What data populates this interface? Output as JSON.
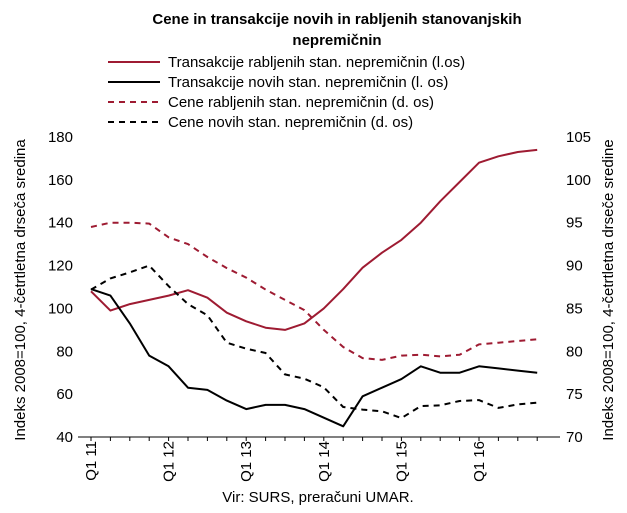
{
  "chart_data": {
    "type": "line",
    "title_line1": "Cene in transakcije novih in rabljenih stanovanjskih",
    "title_line2": "nepremičnin",
    "ylabel_left": "Indeks 2008=100, 4-četrtletna drseča sredina",
    "ylabel_right": "Indeks 2008=100, 4-četrtletna drseče sredine",
    "source": "Vir: SURS, preračuni UMAR.",
    "ylim_left": [
      40,
      180
    ],
    "yticks_left": [
      "40",
      "60",
      "80",
      "100",
      "120",
      "140",
      "160",
      "180"
    ],
    "ylim_right": [
      70,
      105
    ],
    "yticks_right": [
      "70",
      "75",
      "80",
      "85",
      "90",
      "95",
      "100",
      "105"
    ],
    "x_periods": [
      "Q1 11",
      "Q2 11",
      "Q3 11",
      "Q4 11",
      "Q1 12",
      "Q2 12",
      "Q3 12",
      "Q4 12",
      "Q1 13",
      "Q2 13",
      "Q3 13",
      "Q4 13",
      "Q1 14",
      "Q2 14",
      "Q3 14",
      "Q4 14",
      "Q1 15",
      "Q2 15",
      "Q3 15",
      "Q4 15",
      "Q1 16",
      "Q2 16",
      "Q3 16",
      "Q4 16"
    ],
    "x_tick_labels": [
      "Q1 11",
      "Q1 12",
      "Q1 13",
      "Q1 14",
      "Q1 15",
      "Q1 16"
    ],
    "legend": "top",
    "series": [
      {
        "name": "Transakcije rabljenih stan. nepremičnin (l.os)",
        "axis": "left",
        "style": "solid",
        "color": "#9e1b32",
        "values": [
          108,
          99,
          102,
          104,
          106,
          108.5,
          105,
          98,
          94,
          91,
          90,
          93,
          100,
          109,
          119,
          126,
          132,
          140,
          150,
          159,
          168,
          171,
          173,
          174
        ]
      },
      {
        "name": "Transakcije novih stan. nepremičnin (l. os)",
        "axis": "left",
        "style": "solid",
        "color": "#000000",
        "values": [
          109,
          106,
          93,
          78,
          73,
          63,
          62,
          57,
          53,
          55,
          55,
          53,
          49,
          45,
          59,
          63,
          67,
          73,
          70,
          70,
          73,
          72,
          71,
          70
        ]
      },
      {
        "name": "Cene rabljenih stan. nepremičnin (d. os)",
        "axis": "right",
        "style": "dashed",
        "color": "#9e1b32",
        "values": [
          94.5,
          95,
          95,
          94.9,
          93.3,
          92.5,
          91,
          89.7,
          88.6,
          87.2,
          86,
          84.8,
          82.5,
          80.5,
          79.2,
          79,
          79.5,
          79.6,
          79.4,
          79.6,
          80.8,
          81,
          81.2,
          81.4
        ]
      },
      {
        "name": "Cene novih stan. nepremičnin (d. os)",
        "axis": "right",
        "style": "dashed",
        "color": "#000000",
        "values": [
          87.2,
          88.5,
          89.2,
          90,
          87.6,
          85.5,
          84.2,
          81,
          80.3,
          79.8,
          77.3,
          76.8,
          75.8,
          73.5,
          73.2,
          73,
          72.2,
          73.6,
          73.7,
          74.2,
          74.3,
          73.4,
          73.8,
          74
        ]
      }
    ]
  }
}
